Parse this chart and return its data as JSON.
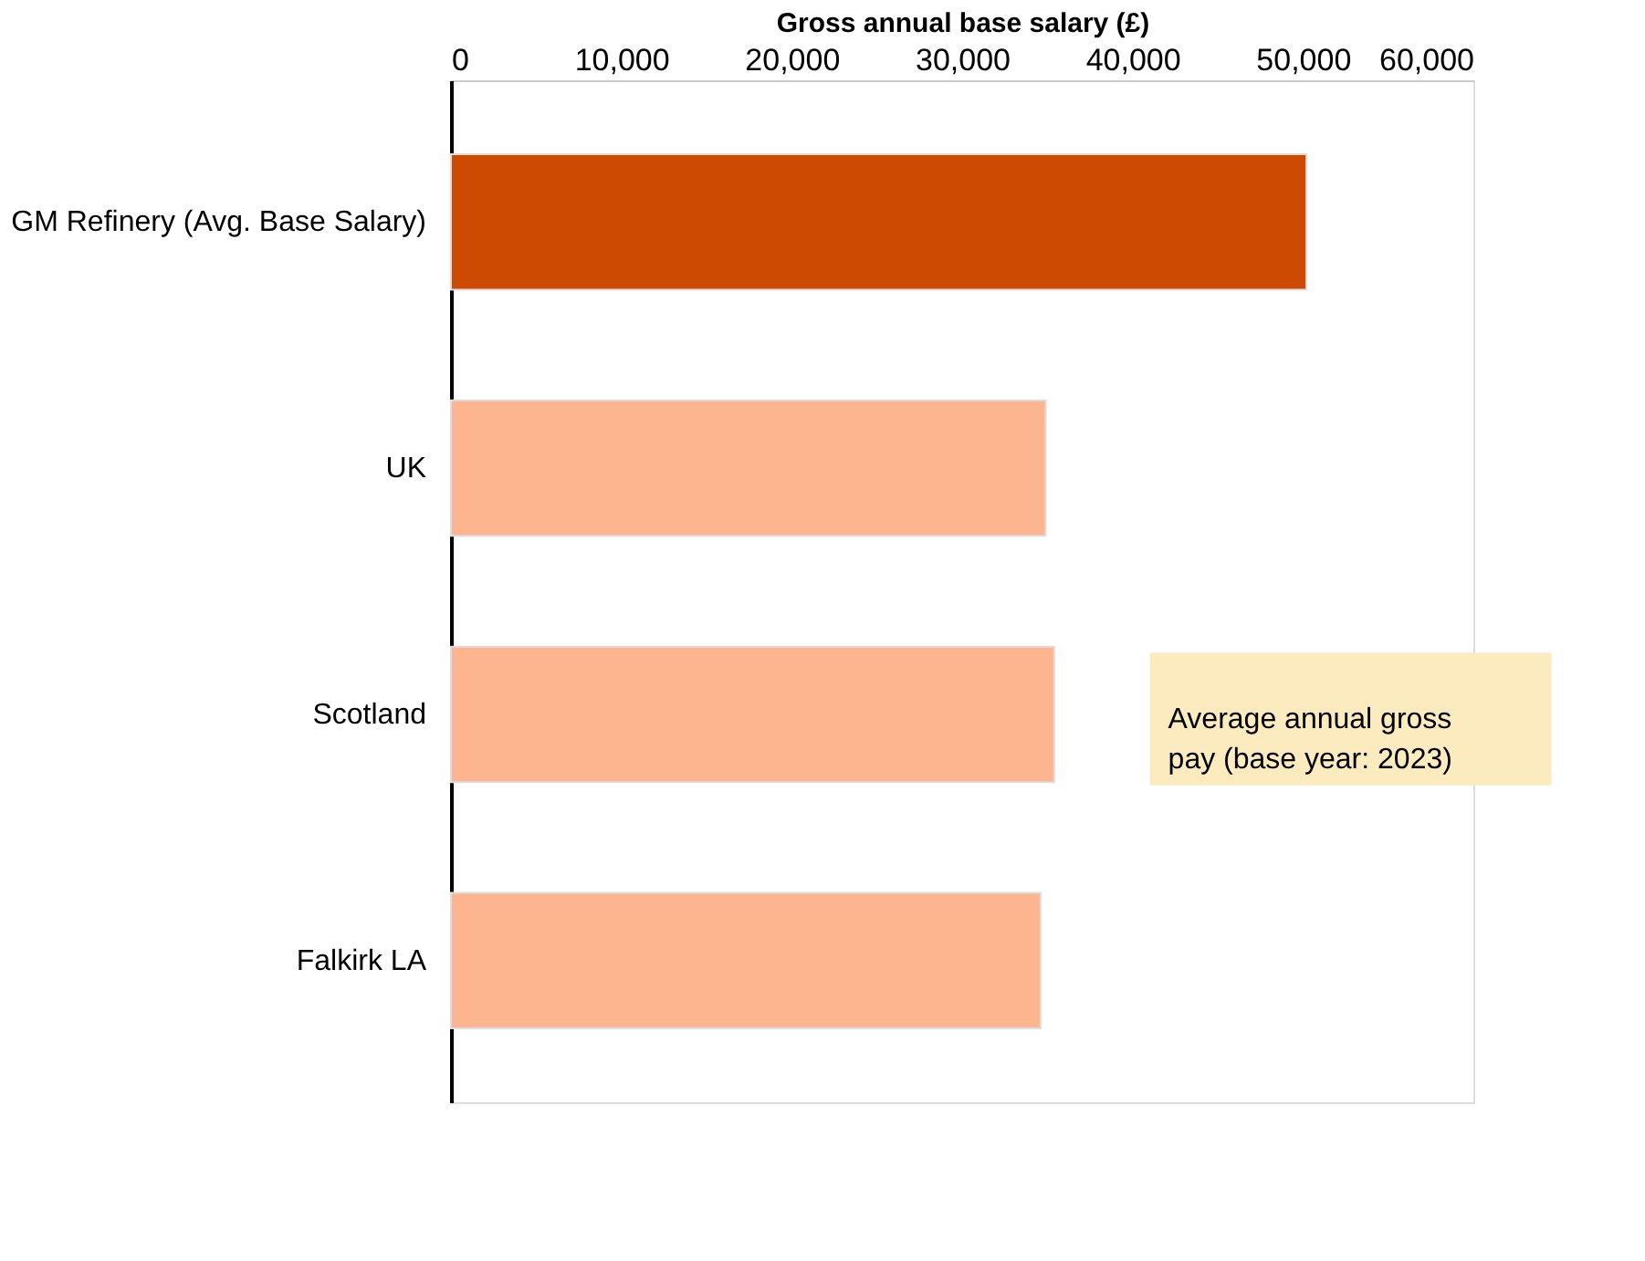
{
  "chart_data": {
    "type": "bar",
    "orientation": "horizontal",
    "xlabel": "Gross annual base salary (£)",
    "categories": [
      "GM Refinery (Avg. Base Salary)",
      "UK",
      "Scotland",
      "Falkirk LA"
    ],
    "values": [
      50200,
      34900,
      35400,
      34600
    ],
    "colors": [
      "#cc4a02",
      "#fdb58f",
      "#fdb58f",
      "#fdb58f"
    ],
    "xlim": [
      0,
      60000
    ],
    "xticks": [
      0,
      {
        "value": 10000,
        "label": "10,000"
      },
      {
        "value": 20000,
        "label": "20,000"
      },
      {
        "value": 30000,
        "label": "30,000"
      },
      {
        "value": 40000,
        "label": "40,000"
      },
      {
        "value": 50000,
        "label": "50,000"
      },
      {
        "value": 60000,
        "label": "60,000"
      }
    ],
    "grid": false,
    "annotations": [
      "Average annual gross pay (base year: 2023)"
    ]
  }
}
